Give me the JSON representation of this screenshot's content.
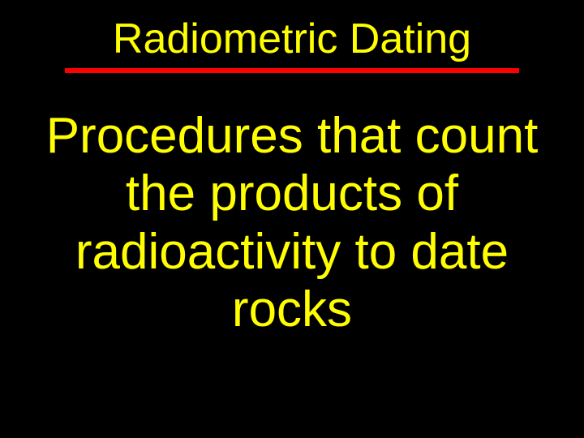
{
  "slide": {
    "title": "Radiometric Dating",
    "body": "Procedures that count the products of radioactivity to date rocks",
    "title_color": "#ffff00",
    "body_color": "#ffff00",
    "underline_color": "#ff0000",
    "background_color": "#000000",
    "title_fontsize": 52,
    "body_fontsize": 62,
    "underline_width": 560,
    "underline_height": 6
  }
}
